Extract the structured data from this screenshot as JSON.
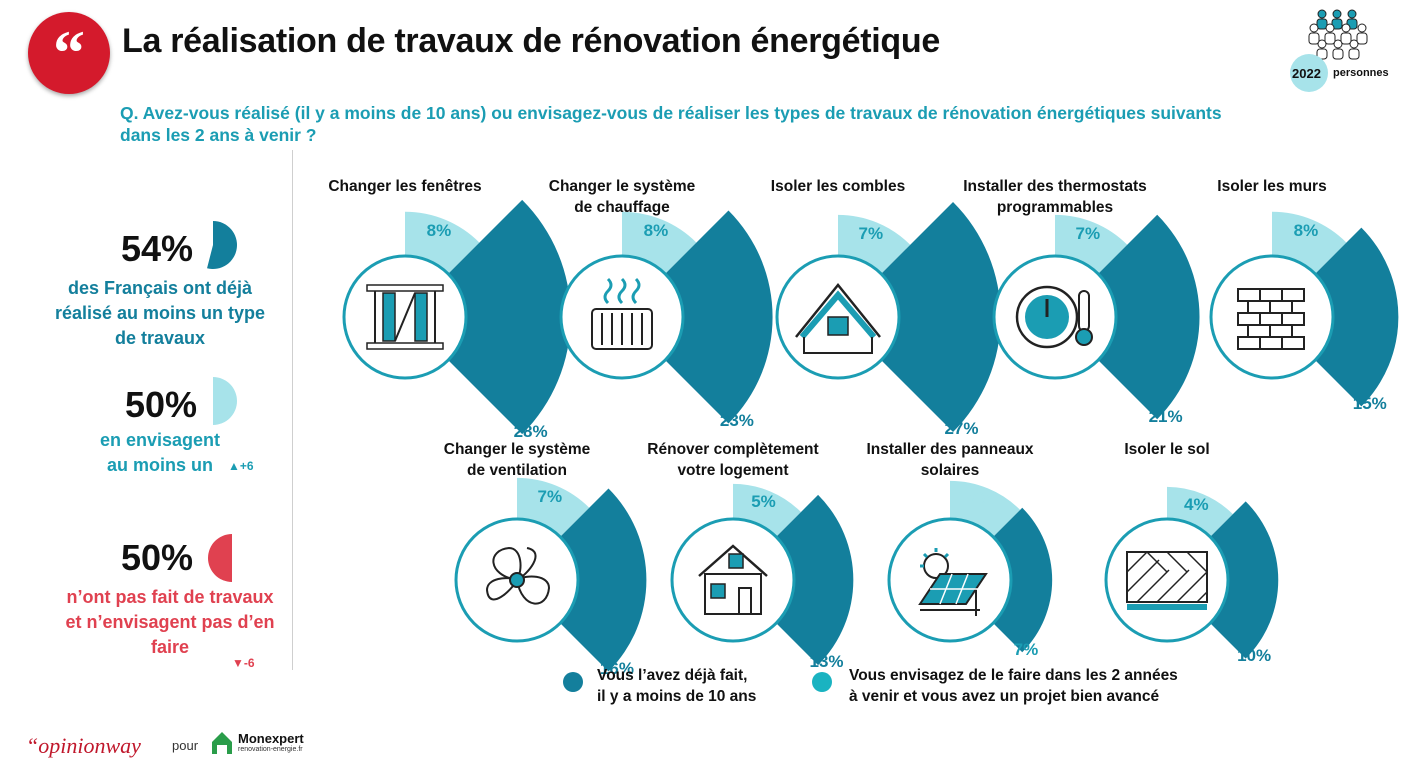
{
  "header": {
    "title": "La réalisation de travaux de rénovation énergétique",
    "question": "Q. Avez-vous réalisé (il y a moins de 10 ans) ou envisagez-vous de réaliser les types de travaux de rénovation énergétiques suivants dans les 2 ans à venir ?",
    "sample_size": "2022",
    "sample_label": "personnes"
  },
  "summary": [
    {
      "pct": "54%",
      "text": [
        "des Français ont déjà",
        "réalisé au moins un type",
        "de travaux"
      ],
      "color": "#137f9c",
      "trend": "",
      "fraction": 0.54
    },
    {
      "pct": "50%",
      "text": [
        "en envisagent",
        "au moins un"
      ],
      "color": "#1b9db3",
      "trend": "+6",
      "fraction": 0.5
    },
    {
      "pct": "50%",
      "text": [
        "n’ont pas fait de travaux",
        "et n’envisagent pas d’en",
        "faire"
      ],
      "color": "#e04150",
      "trend": "-6",
      "fraction": 0.5
    }
  ],
  "chart_data": {
    "type": "radial-bar",
    "series": [
      {
        "name": "Vous l’avez déjà fait, il y a moins de 10 ans",
        "color": "#137f9c"
      },
      {
        "name": "Vous envisagez de le faire dans les 2 années à venir et vous avez un projet bien avancé",
        "color": "#a7e3ea"
      }
    ],
    "items": [
      {
        "label": [
          "Changer les fenêtres"
        ],
        "icon": "window-icon",
        "done": 28,
        "planned": 8
      },
      {
        "label": [
          "Changer le système",
          "de chauffage"
        ],
        "icon": "radiator-icon",
        "done": 23,
        "planned": 8
      },
      {
        "label": [
          "Isoler les combles"
        ],
        "icon": "attic-icon",
        "done": 27,
        "planned": 7
      },
      {
        "label": [
          "Installer des thermostats",
          "programmables"
        ],
        "icon": "thermostat-icon",
        "done": 21,
        "planned": 7
      },
      {
        "label": [
          "Isoler les murs"
        ],
        "icon": "brick-wall-icon",
        "done": 15,
        "planned": 8
      },
      {
        "label": [
          "Changer le système",
          "de ventilation"
        ],
        "icon": "fan-icon",
        "done": 16,
        "planned": 7
      },
      {
        "label": [
          "Rénover complètement",
          "votre logement"
        ],
        "icon": "house-icon",
        "done": 13,
        "planned": 5
      },
      {
        "label": [
          "Installer des panneaux",
          "solaires"
        ],
        "icon": "solar-panel-icon",
        "done": 7,
        "planned": 6
      },
      {
        "label": [
          "Isoler le sol"
        ],
        "icon": "floor-icon",
        "done": 10,
        "planned": 4
      }
    ]
  },
  "legend": [
    {
      "lines": [
        "Vous l’avez déjà fait,",
        "il y a moins de 10 ans"
      ],
      "color": "#137f9c"
    },
    {
      "lines": [
        "Vous envisagez de le faire dans les 2 années",
        "à venir et vous avez un projet bien avancé"
      ],
      "color": "#1ab3c1"
    }
  ],
  "footer": {
    "brand": "“opinionway",
    "pour": "pour",
    "partner": "Monexpert",
    "partner_sub": "renovation-energie.fr"
  }
}
